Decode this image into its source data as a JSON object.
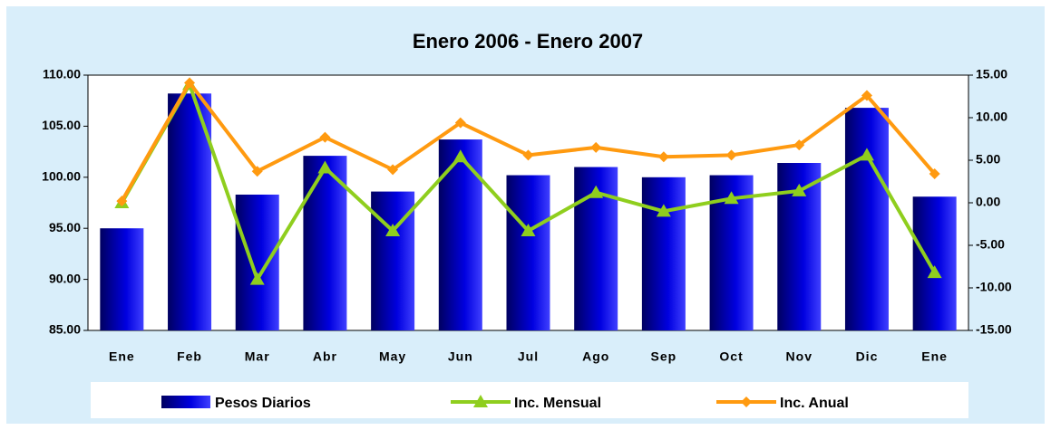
{
  "chart_data": {
    "type": "bar_line",
    "title": "Enero 2006 - Enero 2007",
    "categories": [
      "Ene",
      "Feb",
      "Mar",
      "Abr",
      "May",
      "Jun",
      "Jul",
      "Ago",
      "Sep",
      "Oct",
      "Nov",
      "Dic",
      "Ene"
    ],
    "series": [
      {
        "name": "Pesos Diarios",
        "type": "bar",
        "color": "#0000e0",
        "axis": "y",
        "values": [
          95.0,
          108.2,
          98.3,
          102.1,
          98.6,
          103.7,
          100.2,
          101.0,
          100.0,
          100.2,
          101.4,
          106.8,
          98.1
        ]
      },
      {
        "name": "Inc. Mensual",
        "type": "line",
        "marker": "triangle",
        "color": "#8fce1e",
        "axis": "y2",
        "values": [
          0.0,
          13.9,
          -9.0,
          4.1,
          -3.3,
          5.4,
          -3.3,
          1.2,
          -1.0,
          0.5,
          1.4,
          5.6,
          -8.2
        ]
      },
      {
        "name": "Inc. Anual",
        "type": "line",
        "marker": "diamond",
        "color": "#ff9a10",
        "axis": "y2",
        "values": [
          0.2,
          14.1,
          3.7,
          7.7,
          3.9,
          9.4,
          5.6,
          6.5,
          5.4,
          5.6,
          6.8,
          12.6,
          3.4
        ]
      }
    ],
    "ylim": [
      85,
      110
    ],
    "yticks": [
      {
        "value": 85,
        "label": "85.00"
      },
      {
        "value": 90,
        "label": "90.00"
      },
      {
        "value": 95,
        "label": "95.00"
      },
      {
        "value": 100,
        "label": "100.00"
      },
      {
        "value": 105,
        "label": "105.00"
      },
      {
        "value": 110,
        "label": "110.00"
      }
    ],
    "y2lim": [
      -15,
      15
    ],
    "y2ticks": [
      {
        "value": -15,
        "label": "-15.00"
      },
      {
        "value": -10,
        "label": "-10.00"
      },
      {
        "value": -5,
        "label": "-5.00"
      },
      {
        "value": 0,
        "label": "0.00"
      },
      {
        "value": 5,
        "label": "5.00"
      },
      {
        "value": 10,
        "label": "10.00"
      },
      {
        "value": 15,
        "label": "15.00"
      }
    ],
    "grid": false,
    "legend": "bottom"
  }
}
